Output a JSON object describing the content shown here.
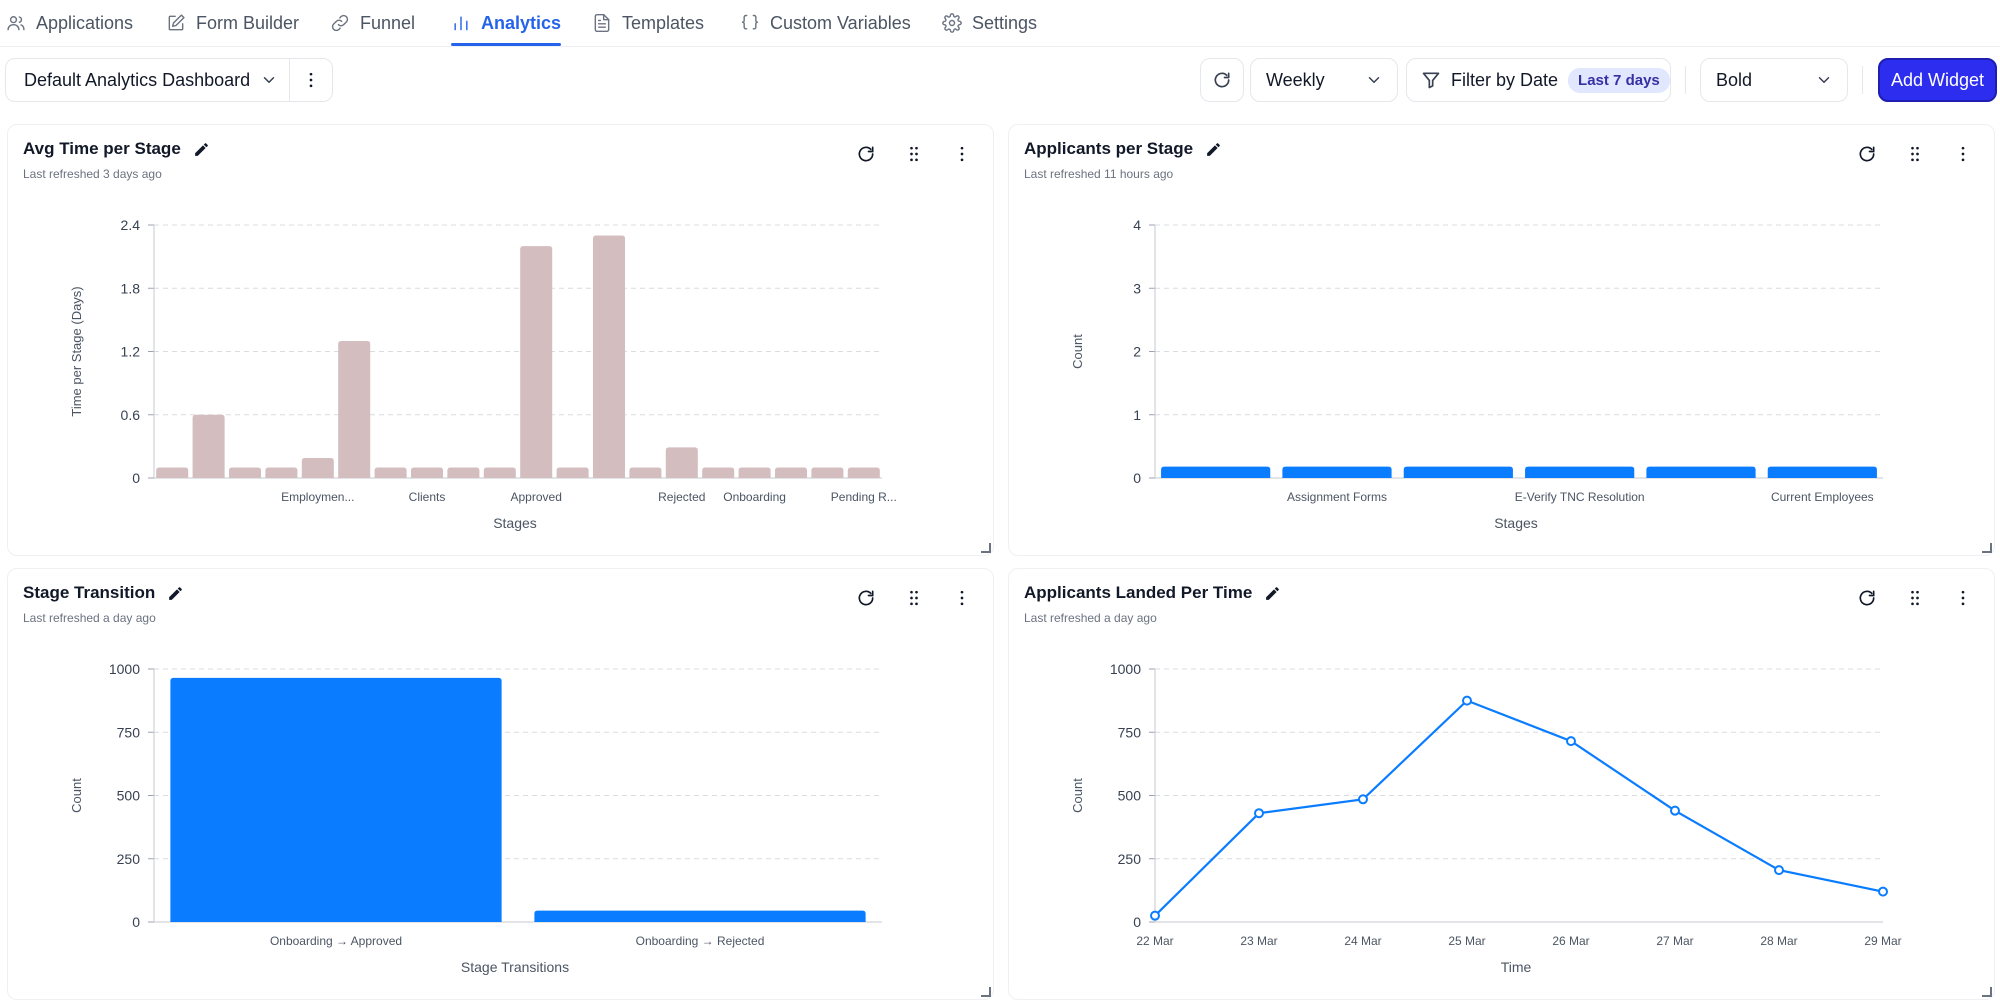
{
  "nav": {
    "tabs": [
      {
        "label": "Applications",
        "icon": "users-icon"
      },
      {
        "label": "Form Builder",
        "icon": "edit-form-icon"
      },
      {
        "label": "Funnel",
        "icon": "link-icon"
      },
      {
        "label": "Analytics",
        "icon": "bar-chart-icon",
        "active": true
      },
      {
        "label": "Templates",
        "icon": "document-icon"
      },
      {
        "label": "Custom Variables",
        "icon": "braces-icon"
      },
      {
        "label": "Settings",
        "icon": "gear-icon"
      }
    ]
  },
  "toolbar": {
    "dashboard_label": "Default Analytics Dashboard",
    "interval_label": "Weekly",
    "filter_label": "Filter by Date",
    "filter_badge": "Last 7 days",
    "theme_label": "Bold",
    "add_widget_label": "Add Widget"
  },
  "colors": {
    "accent": "#2563eb",
    "bar_blue": "#0a7cff",
    "bar_mauve": "#d4bdbf",
    "primary_button": "#2d2df0"
  },
  "widgets": [
    {
      "title": "Avg Time per Stage",
      "subtitle": "Last refreshed 3 days ago"
    },
    {
      "title": "Applicants per Stage",
      "subtitle": "Last refreshed 11 hours ago"
    },
    {
      "title": "Stage Transition",
      "subtitle": "Last refreshed a day ago"
    },
    {
      "title": "Applicants Landed Per Time",
      "subtitle": "Last refreshed a day ago"
    }
  ],
  "chart_data": [
    {
      "type": "bar",
      "title": "Avg Time per Stage",
      "xlabel": "Stages",
      "ylabel": "Time per Stage (Days)",
      "ylim": [
        0,
        2.4
      ],
      "yticks": [
        "0",
        "0.6",
        "1.2",
        "1.8",
        "2.4"
      ],
      "color": "#d4bdbf",
      "grid": true,
      "categories": [
        "",
        "",
        "",
        "",
        "Employmen...",
        "",
        "",
        "Clients",
        "",
        "",
        "Approved",
        "",
        "",
        "",
        "Rejected",
        "",
        "Onboarding",
        "",
        "",
        "Pending R..."
      ],
      "values": [
        0.1,
        0.6,
        0.1,
        0.1,
        0.19,
        1.3,
        0.1,
        0.1,
        0.1,
        0.1,
        2.2,
        0.1,
        2.3,
        0.1,
        0.29,
        0.1,
        0.1,
        0.1,
        0.1,
        0.1
      ]
    },
    {
      "type": "bar",
      "title": "Applicants per Stage",
      "xlabel": "Stages",
      "ylabel": "Count",
      "ylim": [
        0,
        4
      ],
      "yticks": [
        "0",
        "1",
        "2",
        "3",
        "4"
      ],
      "color": "#0a7cff",
      "grid": true,
      "categories": [
        "",
        "Assignment Forms",
        "",
        "E-Verify TNC Resolution",
        "",
        "Current Employees"
      ],
      "values": [
        0.18,
        0.18,
        0.18,
        0.18,
        0.18,
        0.18
      ]
    },
    {
      "type": "bar",
      "title": "Stage Transition",
      "xlabel": "Stage Transitions",
      "ylabel": "Count",
      "ylim": [
        0,
        1000
      ],
      "yticks": [
        "0",
        "250",
        "500",
        "750",
        "1000"
      ],
      "color": "#0a7cff",
      "grid": true,
      "categories": [
        "Onboarding → Approved",
        "Onboarding → Rejected"
      ],
      "values": [
        965,
        45
      ]
    },
    {
      "type": "line",
      "title": "Applicants Landed Per Time",
      "xlabel": "Time",
      "ylabel": "Count",
      "ylim": [
        0,
        1000
      ],
      "yticks": [
        "0",
        "250",
        "500",
        "750",
        "1000"
      ],
      "color": "#0a7cff",
      "grid": true,
      "categories": [
        "22 Mar",
        "23 Mar",
        "24 Mar",
        "25 Mar",
        "26 Mar",
        "27 Mar",
        "28 Mar",
        "29 Mar"
      ],
      "values": [
        25,
        430,
        485,
        875,
        715,
        440,
        205,
        120
      ]
    }
  ]
}
